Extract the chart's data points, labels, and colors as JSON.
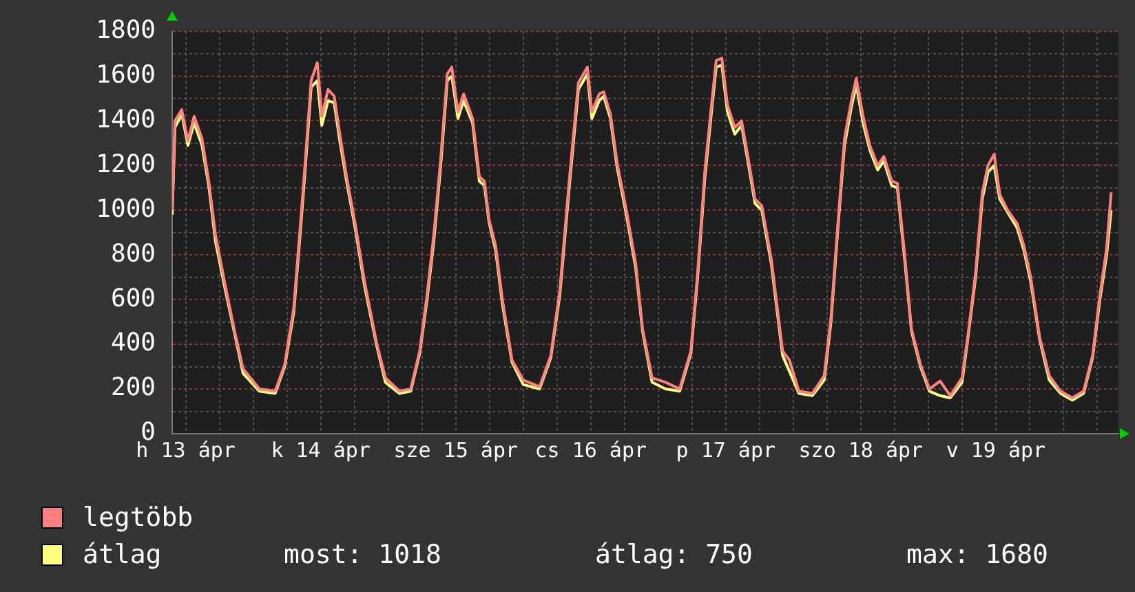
{
  "chart_data": {
    "type": "line",
    "x": [
      "--04-12T21:36",
      "--04-12T22:06",
      "--04-12T23:18",
      "--04-13T00:24",
      "--04-13T01:30",
      "--04-13T02:54",
      "--04-13T04:06",
      "--04-13T05:18",
      "--04-13T06:54",
      "--04-13T08:36",
      "--04-13T10:12",
      "--04-13T13:06",
      "--04-13T15:54",
      "--04-13T17:36",
      "--04-13T19:12",
      "--04-13T20:24",
      "--04-13T21:12",
      "--04-13T22:18",
      "--04-13T23:24",
      "--04-14T00:12",
      "--04-14T01:18",
      "--04-14T02:24",
      "--04-14T03:24",
      "--04-14T04:36",
      "--04-14T06:12",
      "--04-14T07:48",
      "--04-14T09:54",
      "--04-14T11:30",
      "--04-14T14:00",
      "--04-14T16:00",
      "--04-14T17:36",
      "--04-14T18:54",
      "--04-14T20:06",
      "--04-14T21:18",
      "--04-14T22:30",
      "--04-14T23:18",
      "--04-15T00:24",
      "--04-15T01:24",
      "--04-15T03:00",
      "--04-15T04:12",
      "--04-15T05:06",
      "--04-15T05:54",
      "--04-15T07:06",
      "--04-15T08:18",
      "--04-15T10:00",
      "--04-15T12:00",
      "--04-15T14:54",
      "--04-15T16:54",
      "--04-15T18:30",
      "--04-15T20:12",
      "--04-15T21:48",
      "--04-15T23:24",
      "--04-16T00:12",
      "--04-16T01:30",
      "--04-16T02:18",
      "--04-16T03:30",
      "--04-16T04:42",
      "--04-16T06:24",
      "--04-16T08:00",
      "--04-16T09:12",
      "--04-16T10:54",
      "--04-16T13:18",
      "--04-16T15:48",
      "--04-16T17:48",
      "--04-16T19:00",
      "--04-16T20:18",
      "--04-16T21:30",
      "--04-16T22:18",
      "--04-16T23:18",
      "--04-17T00:18",
      "--04-17T01:36",
      "--04-17T02:48",
      "--04-17T04:00",
      "--04-17T05:12",
      "--04-17T06:24",
      "--04-17T08:06",
      "--04-17T10:06",
      "--04-17T11:18",
      "--04-17T13:00",
      "--04-17T15:24",
      "--04-17T17:30",
      "--04-17T18:42",
      "--04-17T19:54",
      "--04-17T21:06",
      "--04-17T22:24",
      "--04-17T23:12",
      "--04-18T00:24",
      "--04-18T01:36",
      "--04-18T03:00",
      "--04-18T04:06",
      "--04-18T05:30",
      "--04-18T06:30",
      "--04-18T07:48",
      "--04-18T09:00",
      "--04-18T10:36",
      "--04-18T12:12",
      "--04-18T14:06",
      "--04-18T15:54",
      "--04-18T18:00",
      "--04-18T19:12",
      "--04-18T20:24",
      "--04-18T21:36",
      "--04-18T22:36",
      "--04-18T23:42",
      "--04-19T00:42",
      "--04-19T02:06",
      "--04-19T03:48",
      "--04-19T05:00",
      "--04-19T06:12",
      "--04-19T07:48",
      "--04-19T09:30",
      "--04-19T11:30",
      "--04-19T13:36",
      "--04-19T15:36",
      "--04-19T17:12",
      "--04-19T18:30",
      "--04-19T19:42",
      "--04-19T20:30"
    ],
    "series": [
      {
        "name": "legtöbb",
        "color": "#ff8080",
        "values": [
          1000,
          1400,
          1450,
          1310,
          1420,
          1320,
          1130,
          890,
          680,
          470,
          290,
          200,
          190,
          310,
          560,
          940,
          1200,
          1580,
          1660,
          1420,
          1540,
          1510,
          1340,
          1150,
          930,
          680,
          410,
          250,
          190,
          200,
          370,
          620,
          890,
          1220,
          1610,
          1640,
          1440,
          1520,
          1410,
          1150,
          1130,
          960,
          840,
          600,
          330,
          240,
          210,
          350,
          640,
          1140,
          1570,
          1640,
          1440,
          1520,
          1530,
          1430,
          1210,
          990,
          760,
          470,
          250,
          230,
          200,
          370,
          720,
          1180,
          1480,
          1670,
          1680,
          1470,
          1370,
          1400,
          1230,
          1050,
          1020,
          780,
          370,
          330,
          190,
          180,
          260,
          520,
          930,
          1320,
          1500,
          1590,
          1420,
          1290,
          1200,
          1240,
          1130,
          1120,
          800,
          470,
          310,
          200,
          235,
          170,
          250,
          470,
          720,
          1080,
          1200,
          1250,
          1070,
          1000,
          940,
          840,
          700,
          430,
          260,
          190,
          160,
          190,
          350,
          620,
          830,
          1080
        ]
      },
      {
        "name": "átlag",
        "color": "#ffff80",
        "values": [
          980,
          1370,
          1430,
          1290,
          1390,
          1290,
          1110,
          860,
          660,
          460,
          270,
          190,
          180,
          300,
          540,
          910,
          1170,
          1550,
          1580,
          1380,
          1490,
          1480,
          1310,
          1130,
          910,
          660,
          400,
          230,
          180,
          190,
          360,
          600,
          860,
          1190,
          1580,
          1600,
          1410,
          1490,
          1390,
          1130,
          1110,
          950,
          820,
          580,
          320,
          220,
          200,
          340,
          620,
          1110,
          1540,
          1610,
          1410,
          1490,
          1510,
          1410,
          1190,
          970,
          740,
          460,
          230,
          200,
          190,
          360,
          700,
          1150,
          1450,
          1640,
          1650,
          1440,
          1340,
          1380,
          1210,
          1030,
          1000,
          760,
          350,
          280,
          180,
          170,
          240,
          500,
          910,
          1290,
          1470,
          1560,
          1390,
          1270,
          1180,
          1220,
          1110,
          1100,
          780,
          460,
          300,
          190,
          170,
          160,
          230,
          460,
          700,
          1050,
          1170,
          1200,
          1050,
          990,
          920,
          820,
          680,
          420,
          240,
          180,
          150,
          180,
          340,
          600,
          800,
          1000
        ]
      }
    ],
    "xlim": [
      "--04-12T21:36",
      "--04-19T21:48"
    ],
    "xticks": [
      {
        "value": "--04-13T00:00",
        "label": "h 13 ápr"
      },
      {
        "value": "--04-13T06:00",
        "label": null
      },
      {
        "value": "--04-13T12:00",
        "label": null
      },
      {
        "value": "--04-13T18:00",
        "label": null
      },
      {
        "value": "--04-14T00:00",
        "label": "k 14 ápr"
      },
      {
        "value": "--04-14T06:00",
        "label": null
      },
      {
        "value": "--04-14T12:00",
        "label": null
      },
      {
        "value": "--04-14T18:00",
        "label": null
      },
      {
        "value": "--04-15T00:00",
        "label": "sze 15 ápr"
      },
      {
        "value": "--04-15T06:00",
        "label": null
      },
      {
        "value": "--04-15T12:00",
        "label": null
      },
      {
        "value": "--04-15T18:00",
        "label": null
      },
      {
        "value": "--04-16T00:00",
        "label": "cs 16 ápr"
      },
      {
        "value": "--04-16T06:00",
        "label": null
      },
      {
        "value": "--04-16T12:00",
        "label": null
      },
      {
        "value": "--04-16T18:00",
        "label": null
      },
      {
        "value": "--04-17T00:00",
        "label": "p 17 ápr"
      },
      {
        "value": "--04-17T06:00",
        "label": null
      },
      {
        "value": "--04-17T12:00",
        "label": null
      },
      {
        "value": "--04-17T18:00",
        "label": null
      },
      {
        "value": "--04-18T00:00",
        "label": "szo 18 ápr"
      },
      {
        "value": "--04-18T06:00",
        "label": null
      },
      {
        "value": "--04-18T12:00",
        "label": null
      },
      {
        "value": "--04-18T18:00",
        "label": null
      },
      {
        "value": "--04-19T00:00",
        "label": "v 19 ápr"
      },
      {
        "value": "--04-19T06:00",
        "label": null
      },
      {
        "value": "--04-19T12:00",
        "label": null
      },
      {
        "value": "--04-19T18:00",
        "label": null
      }
    ],
    "ylim": [
      0,
      1800
    ],
    "yticks": [
      0,
      {
        "value": 100,
        "label": null
      },
      200,
      {
        "value": 300,
        "label": null
      },
      400,
      {
        "value": 500,
        "label": null
      },
      600,
      {
        "value": 700,
        "label": null
      },
      800,
      {
        "value": 900,
        "label": null
      },
      1000,
      {
        "value": 1100,
        "label": null
      },
      1200,
      {
        "value": 1300,
        "label": null
      },
      1400,
      {
        "value": 1500,
        "label": null
      },
      1600,
      {
        "value": 1700,
        "label": null
      },
      1800
    ],
    "grid": true,
    "legend": "bottom",
    "marker": "none",
    "line_style": "solid",
    "annotations": [
      "most: 1018",
      "átlag: 750",
      "max: 1680"
    ]
  }
}
